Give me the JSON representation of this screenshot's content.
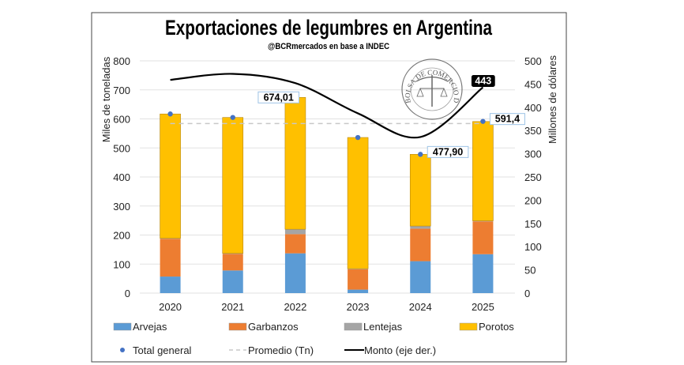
{
  "chart_data": {
    "type": "bar",
    "stacked": true,
    "title": "Exportaciones de legumbres en Argentina",
    "subtitle": "@BCRmercados en base a INDEC",
    "ylabel": "Miles de toneladas",
    "ylabel_right": "Millones de dólares",
    "ylim": [
      0,
      800
    ],
    "ylim_right": [
      0,
      500
    ],
    "yticks": [
      "0",
      "100",
      "200",
      "300",
      "400",
      "500",
      "600",
      "700",
      "800"
    ],
    "yticks_right": [
      "0",
      "50",
      "100",
      "150",
      "200",
      "250",
      "300",
      "350",
      "400",
      "450",
      "500"
    ],
    "grid": true,
    "legend_position": "bottom",
    "categories": [
      "2020",
      "2021",
      "2022",
      "2023",
      "2024",
      "2025"
    ],
    "series": [
      {
        "name": "Arvejas",
        "color": "#5b9bd5",
        "values": [
          57,
          78,
          137,
          12,
          110,
          134
        ]
      },
      {
        "name": "Garbanzos",
        "color": "#ed7d31",
        "values": [
          130,
          57,
          66,
          70,
          112,
          113
        ]
      },
      {
        "name": "Lentejas",
        "color": "#a5a5a5",
        "values": [
          2,
          2,
          17,
          2,
          9,
          2
        ]
      },
      {
        "name": "Porotos",
        "color": "#ffc000",
        "values": [
          428,
          468,
          454,
          452,
          247,
          342
        ]
      }
    ],
    "total": {
      "name": "Total general",
      "color": "#4472c4",
      "values": [
        617,
        605,
        674.01,
        536,
        477.9,
        591.4
      ]
    },
    "average": {
      "name": "Promedio (Tn)",
      "color": "#c8c8c8",
      "value": 584
    },
    "monto": {
      "name": "Monto (eje der.)",
      "color": "#000000",
      "values": [
        459,
        472,
        452,
        387,
        336,
        443
      ]
    },
    "data_labels": [
      {
        "category": "2022",
        "text": "674,01"
      },
      {
        "category": "2024",
        "text": "477,90"
      },
      {
        "category": "2025",
        "text": "591,4"
      },
      {
        "category": "2025",
        "text": "443",
        "series": "monto"
      }
    ],
    "logo_text": "BOLSA DE COMERCIO DE ROSARIO"
  }
}
